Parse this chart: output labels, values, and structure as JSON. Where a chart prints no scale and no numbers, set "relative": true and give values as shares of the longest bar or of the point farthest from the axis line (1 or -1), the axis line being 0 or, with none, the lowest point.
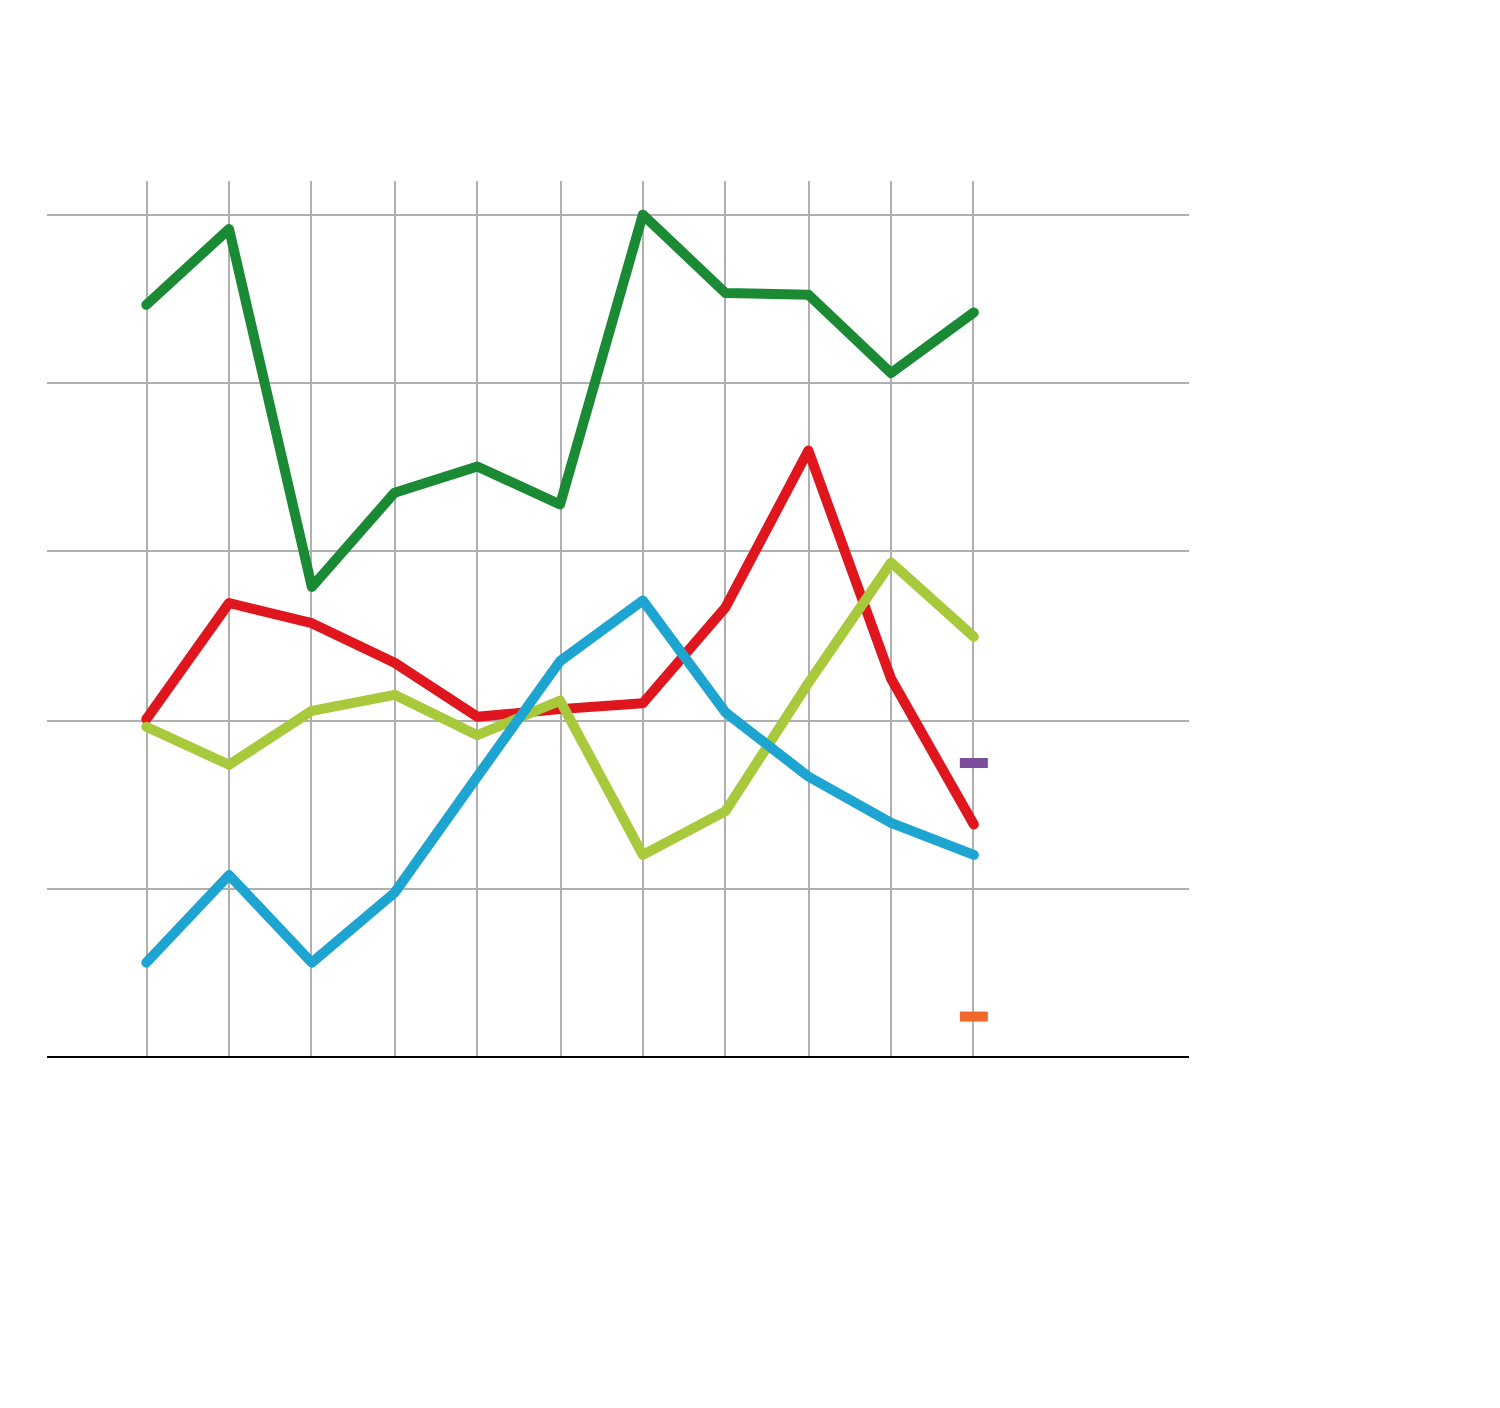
{
  "chart_data": {
    "type": "line",
    "relative": true,
    "grid": true,
    "line_style": "solid",
    "categories": [
      null,
      null,
      null,
      null,
      null,
      null,
      null,
      null,
      null,
      null,
      null
    ],
    "series": [
      {
        "color": "#1a8a34",
        "values": [
          0.893,
          0.983,
          0.558,
          0.67,
          0.701,
          0.656,
          1.0,
          0.907,
          0.905,
          0.812,
          0.884
        ]
      },
      {
        "color": "#e0161e",
        "values": [
          0.401,
          0.539,
          0.515,
          0.468,
          0.404,
          0.413,
          0.42,
          0.534,
          0.72,
          0.449,
          0.276
        ]
      },
      {
        "color": "#a8c93c",
        "values": [
          0.392,
          0.347,
          0.411,
          0.43,
          0.382,
          0.423,
          0.24,
          0.292,
          0.444,
          0.587,
          0.499
        ]
      },
      {
        "color": "#1da4d0",
        "values": [
          0.112,
          0.216,
          0.112,
          0.195,
          0.333,
          0.47,
          0.542,
          0.409,
          0.333,
          0.278,
          0.24
        ]
      },
      {
        "color": "#7b4d9a",
        "marker": "square",
        "values": [
          null,
          null,
          null,
          null,
          null,
          null,
          null,
          null,
          null,
          null,
          0.349
        ]
      },
      {
        "color": "#f0692a",
        "marker": "square",
        "values": [
          null,
          null,
          null,
          null,
          null,
          null,
          null,
          null,
          null,
          null,
          0.048
        ]
      }
    ]
  }
}
